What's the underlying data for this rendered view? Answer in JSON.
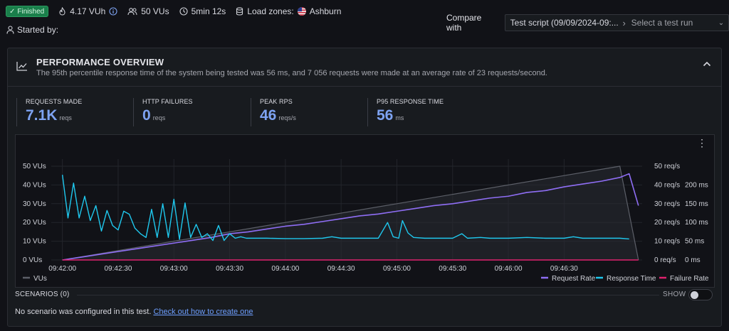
{
  "header": {
    "status": "Finished",
    "vuh": "4.17 VUh",
    "vus": "50 VUs",
    "duration": "5min 12s",
    "load_zones_label": "Load zones:",
    "load_zone": "Ashburn",
    "started_by": "Started by:"
  },
  "compare": {
    "label": "Compare with",
    "test_script": "Test script (09/09/2024-09:...",
    "placeholder": "Select a test run"
  },
  "overview": {
    "title": "PERFORMANCE OVERVIEW",
    "description": "The 95th percentile response time of the system being tested was 56 ms, and 7 056 requests were made at an average rate of 23 requests/second."
  },
  "stats": [
    {
      "label": "REQUESTS MADE",
      "value": "7.1K",
      "unit": "reqs"
    },
    {
      "label": "HTTP FAILURES",
      "value": "0",
      "unit": "reqs"
    },
    {
      "label": "PEAK RPS",
      "value": "46",
      "unit": "reqs/s"
    },
    {
      "label": "P95 RESPONSE TIME",
      "value": "56",
      "unit": "ms"
    }
  ],
  "chart_data": {
    "type": "line",
    "x_ticks": [
      "09:42:00",
      "09:42:30",
      "09:43:00",
      "09:43:30",
      "09:44:00",
      "09:44:30",
      "09:45:00",
      "09:45:30",
      "09:46:00",
      "09:46:30"
    ],
    "x_range_seconds": [
      -6,
      312
    ],
    "y_left": {
      "ticks": [
        "0 VUs",
        "10 VUs",
        "20 VUs",
        "30 VUs",
        "40 VUs",
        "50 VUs"
      ],
      "range": [
        0,
        50
      ]
    },
    "y_right_rps": {
      "ticks": [
        "0 req/s",
        "10 req/s",
        "20 req/s",
        "30 req/s",
        "40 req/s",
        "50 req/s"
      ],
      "range": [
        0,
        50
      ]
    },
    "y_right_ms": {
      "ticks": [
        "0 ms",
        "50 ms",
        "100 ms",
        "150 ms",
        "200 ms"
      ],
      "range": [
        0,
        250
      ]
    },
    "series": [
      {
        "name": "VUs",
        "color": "#5c5f68",
        "axis": "vus",
        "points": [
          [
            0,
            0
          ],
          [
            300,
            50
          ],
          [
            310,
            0
          ]
        ]
      },
      {
        "name": "Request Rate",
        "color": "#8f6ef5",
        "axis": "rps",
        "points": [
          [
            0,
            0
          ],
          [
            10,
            1.5
          ],
          [
            20,
            3
          ],
          [
            30,
            4.5
          ],
          [
            40,
            6
          ],
          [
            50,
            7.5
          ],
          [
            60,
            9
          ],
          [
            70,
            10.5
          ],
          [
            80,
            12
          ],
          [
            90,
            14
          ],
          [
            100,
            15
          ],
          [
            110,
            16.5
          ],
          [
            120,
            18
          ],
          [
            130,
            19
          ],
          [
            140,
            20.5
          ],
          [
            150,
            22
          ],
          [
            160,
            23.5
          ],
          [
            170,
            24.5
          ],
          [
            180,
            26
          ],
          [
            190,
            27.5
          ],
          [
            200,
            29
          ],
          [
            210,
            30
          ],
          [
            220,
            31.5
          ],
          [
            230,
            33
          ],
          [
            240,
            34
          ],
          [
            250,
            36
          ],
          [
            260,
            37
          ],
          [
            270,
            39
          ],
          [
            280,
            40.5
          ],
          [
            290,
            42
          ],
          [
            300,
            44
          ],
          [
            305,
            46
          ],
          [
            310,
            29
          ]
        ]
      },
      {
        "name": "Response Time",
        "color": "#1fc8ee",
        "axis": "ms",
        "points": [
          [
            0,
            227
          ],
          [
            3,
            112
          ],
          [
            6,
            205
          ],
          [
            9,
            112
          ],
          [
            12,
            170
          ],
          [
            15,
            105
          ],
          [
            18,
            145
          ],
          [
            21,
            77
          ],
          [
            24,
            132
          ],
          [
            27,
            92
          ],
          [
            30,
            80
          ],
          [
            33,
            130
          ],
          [
            36,
            122
          ],
          [
            39,
            85
          ],
          [
            42,
            70
          ],
          [
            45,
            60
          ],
          [
            48,
            135
          ],
          [
            51,
            60
          ],
          [
            54,
            150
          ],
          [
            57,
            60
          ],
          [
            60,
            162
          ],
          [
            63,
            55
          ],
          [
            66,
            152
          ],
          [
            69,
            60
          ],
          [
            72,
            95
          ],
          [
            75,
            60
          ],
          [
            78,
            70
          ],
          [
            81,
            52
          ],
          [
            84,
            92
          ],
          [
            87,
            52
          ],
          [
            90,
            70
          ],
          [
            93,
            58
          ],
          [
            96,
            62
          ],
          [
            99,
            58
          ],
          [
            102,
            58
          ],
          [
            110,
            58
          ],
          [
            120,
            57
          ],
          [
            130,
            57
          ],
          [
            140,
            58
          ],
          [
            145,
            62
          ],
          [
            150,
            58
          ],
          [
            160,
            58
          ],
          [
            170,
            58
          ],
          [
            175,
            100
          ],
          [
            178,
            62
          ],
          [
            181,
            58
          ],
          [
            183,
            105
          ],
          [
            186,
            72
          ],
          [
            189,
            60
          ],
          [
            195,
            58
          ],
          [
            200,
            58
          ],
          [
            210,
            58
          ],
          [
            215,
            70
          ],
          [
            218,
            58
          ],
          [
            225,
            60
          ],
          [
            230,
            58
          ],
          [
            240,
            58
          ],
          [
            250,
            60
          ],
          [
            260,
            58
          ],
          [
            270,
            58
          ],
          [
            275,
            62
          ],
          [
            280,
            58
          ],
          [
            290,
            58
          ],
          [
            300,
            58
          ],
          [
            305,
            56
          ]
        ]
      },
      {
        "name": "Failure Rate",
        "color": "#e0226e",
        "axis": "rps",
        "points": [
          [
            0,
            0
          ],
          [
            310,
            0
          ]
        ]
      }
    ]
  },
  "scenarios": {
    "label": "SCENARIOS (0)",
    "show_label": "SHOW",
    "empty_text": "No scenario was configured in this test.",
    "link_text": "Check out how to create one"
  }
}
